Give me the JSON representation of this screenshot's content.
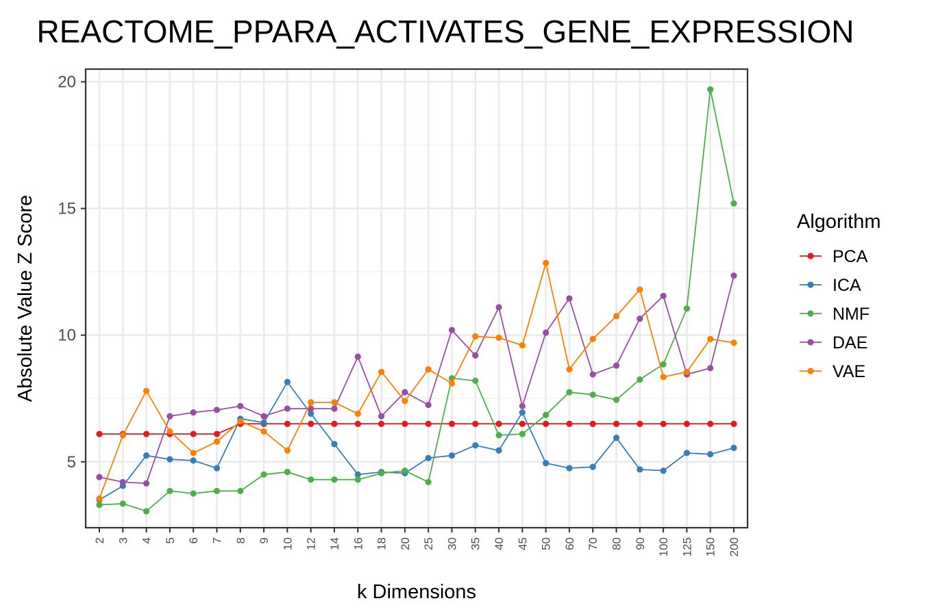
{
  "chart_data": {
    "type": "line",
    "title": "REACTOME_PPARA_ACTIVATES_GENE_EXPRESSION",
    "xlabel": "k Dimensions",
    "ylabel": "Absolute Value Z Score",
    "x": [
      "2",
      "3",
      "4",
      "5",
      "6",
      "7",
      "8",
      "9",
      "10",
      "12",
      "14",
      "16",
      "18",
      "20",
      "25",
      "30",
      "35",
      "40",
      "45",
      "50",
      "60",
      "70",
      "80",
      "90",
      "100",
      "125",
      "150",
      "200"
    ],
    "ylim": [
      2.4,
      20.5
    ],
    "yticks": [
      "5",
      "10",
      "15",
      "20"
    ],
    "grid": true,
    "legend": {
      "title": "Algorithm",
      "position": "right"
    },
    "series": [
      {
        "name": "PCA",
        "color": "#e41a1c",
        "values": [
          6.1,
          6.1,
          6.1,
          6.1,
          6.1,
          6.1,
          6.5,
          6.5,
          6.5,
          6.5,
          6.5,
          6.5,
          6.5,
          6.5,
          6.5,
          6.5,
          6.5,
          6.5,
          6.5,
          6.5,
          6.5,
          6.5,
          6.5,
          6.5,
          6.5,
          6.5,
          6.5,
          6.5
        ]
      },
      {
        "name": "ICA",
        "color": "#377eb8",
        "values": [
          3.5,
          4.05,
          5.25,
          5.1,
          5.05,
          4.75,
          6.7,
          6.55,
          8.15,
          6.9,
          5.7,
          4.5,
          4.6,
          4.55,
          5.15,
          5.25,
          5.65,
          5.45,
          6.95,
          4.95,
          4.75,
          4.8,
          5.95,
          4.7,
          4.65,
          5.35,
          5.3,
          5.55
        ]
      },
      {
        "name": "NMF",
        "color": "#4daf4a",
        "values": [
          3.3,
          3.35,
          3.05,
          3.85,
          3.75,
          3.85,
          3.85,
          4.5,
          4.6,
          4.3,
          4.3,
          4.3,
          4.55,
          4.65,
          4.2,
          8.3,
          8.2,
          6.05,
          6.1,
          6.85,
          7.75,
          7.65,
          7.45,
          8.25,
          8.85,
          11.05,
          19.7,
          15.2
        ]
      },
      {
        "name": "DAE",
        "color": "#984ea3",
        "values": [
          4.4,
          4.2,
          4.15,
          6.8,
          6.95,
          7.05,
          7.2,
          6.8,
          7.1,
          7.1,
          7.1,
          9.15,
          6.8,
          7.75,
          7.25,
          10.2,
          9.2,
          11.1,
          7.2,
          10.1,
          11.45,
          8.45,
          8.8,
          10.65,
          11.55,
          8.45,
          8.7,
          12.35
        ]
      },
      {
        "name": "VAE",
        "color": "#ff7f00",
        "values": [
          3.55,
          6.05,
          7.8,
          6.2,
          5.35,
          5.8,
          6.6,
          6.2,
          5.45,
          7.35,
          7.35,
          6.9,
          8.55,
          7.4,
          8.65,
          8.1,
          9.95,
          9.9,
          9.6,
          12.85,
          8.65,
          9.85,
          10.75,
          11.8,
          8.35,
          8.55,
          9.85,
          9.7
        ]
      }
    ]
  }
}
